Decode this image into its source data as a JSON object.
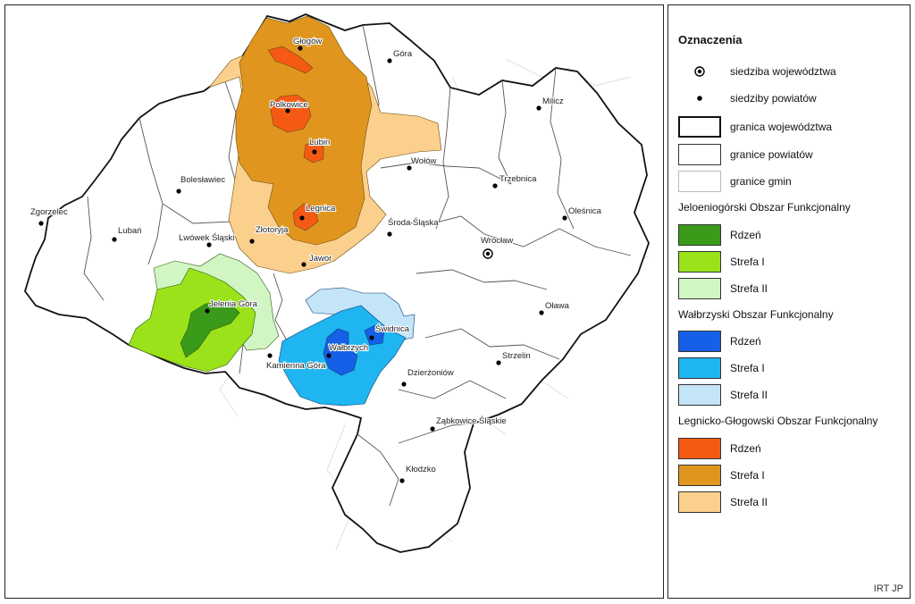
{
  "legend": {
    "title": "Oznaczenia",
    "items": [
      {
        "label": "siedziba województwa",
        "symbol": "capital-icon"
      },
      {
        "label": "siedziby powiatów",
        "symbol": "dot-icon"
      },
      {
        "label": "granica województwa",
        "symbol": "thick-border"
      },
      {
        "label": "granice powiatów",
        "symbol": "border"
      },
      {
        "label": "granice gmin",
        "symbol": "thin-border"
      }
    ],
    "groups": [
      {
        "title": "Jeloeniogórski Obszar Funkcjonalny",
        "zones": [
          {
            "label": "Rdzeń",
            "color": "#3a9a1a"
          },
          {
            "label": "Strefa I",
            "color": "#9be21a"
          },
          {
            "label": "Strefa II",
            "color": "#d2f5c4"
          }
        ]
      },
      {
        "title": "Wałbrzyski Obszar Funkcjonalny",
        "zones": [
          {
            "label": "Rdzeń",
            "color": "#1560e6"
          },
          {
            "label": "Strefa I",
            "color": "#1eb5f0"
          },
          {
            "label": "Strefa II",
            "color": "#c4e5f8"
          }
        ]
      },
      {
        "title": "Legnicko-Głogowski Obszar Funkcjonalny",
        "zones": [
          {
            "label": "Rdzeń",
            "color": "#f55a14"
          },
          {
            "label": "Strefa I",
            "color": "#e0961e"
          },
          {
            "label": "Strefa II",
            "color": "#fbcf8c"
          }
        ]
      }
    ]
  },
  "map": {
    "cities": [
      {
        "name": "Głogów",
        "type": "county-seat"
      },
      {
        "name": "Góra",
        "type": "county-seat"
      },
      {
        "name": "Polkowice",
        "type": "county-seat"
      },
      {
        "name": "Milicz",
        "type": "county-seat"
      },
      {
        "name": "Lubin",
        "type": "county-seat"
      },
      {
        "name": "Wołów",
        "type": "county-seat"
      },
      {
        "name": "Trzebnica",
        "type": "county-seat"
      },
      {
        "name": "Bolesławiec",
        "type": "county-seat"
      },
      {
        "name": "Legnica",
        "type": "county-seat"
      },
      {
        "name": "Oleśnica",
        "type": "county-seat"
      },
      {
        "name": "Zgorzelec",
        "type": "county-seat"
      },
      {
        "name": "Środa Śląska",
        "type": "county-seat"
      },
      {
        "name": "Lubań",
        "type": "county-seat"
      },
      {
        "name": "Lwówek Śląski",
        "type": "county-seat"
      },
      {
        "name": "Złotoryja",
        "type": "county-seat"
      },
      {
        "name": "Wrocław",
        "type": "voivodeship-capital"
      },
      {
        "name": "Jawor",
        "type": "county-seat"
      },
      {
        "name": "Oława",
        "type": "county-seat"
      },
      {
        "name": "Jelenia Góra",
        "type": "county-seat"
      },
      {
        "name": "Świdnica",
        "type": "county-seat"
      },
      {
        "name": "Wałbrzych",
        "type": "county-seat"
      },
      {
        "name": "Strzelin",
        "type": "county-seat"
      },
      {
        "name": "Kamienna Góra",
        "type": "county-seat"
      },
      {
        "name": "Dzierżoniów",
        "type": "county-seat"
      },
      {
        "name": "Ząbkowice Śląskie",
        "type": "county-seat"
      },
      {
        "name": "Kłodzko",
        "type": "county-seat"
      }
    ]
  },
  "credit": "IRT JP"
}
